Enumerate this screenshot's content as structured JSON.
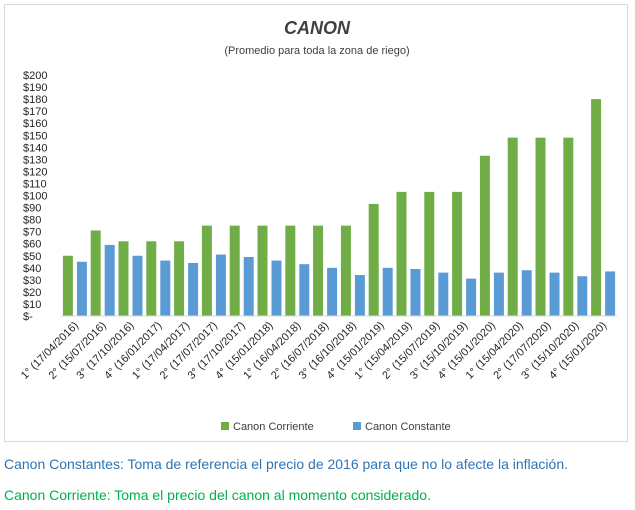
{
  "chart_data": {
    "type": "bar",
    "title": "CANON",
    "subtitle": "(Promedio para toda la zona de riego)",
    "categories": [
      "1° (17/04/2016)",
      "2° (15/07/2016)",
      "3° (17/10/2016)",
      "4° (16/01/2017)",
      "1° (17/04/2017)",
      "2° (17/07/2017)",
      "3° (17/10/2017)",
      "4° (15/01/2018)",
      "1° (16/04/2018)",
      "2° (16/07/2018)",
      "3° (16/10/2018)",
      "4° (15/01/2019)",
      "1° (15/04/2019)",
      "2° (15/07/2019)",
      "3° (15/10/2019)",
      "4° (15/01/2020)",
      "1° (15/04/2020)",
      "2° (17/07/2020)",
      "3° (15/10/2020)",
      "4°  (15/01/2020)"
    ],
    "series": [
      {
        "name": "Canon Corriente",
        "color": "#70ad47",
        "values": [
          50,
          71,
          62,
          62,
          62,
          75,
          75,
          75,
          75,
          75,
          75,
          93,
          103,
          103,
          103,
          133,
          148,
          148,
          148,
          180
        ]
      },
      {
        "name": "Canon Constante",
        "color": "#5b9bd5",
        "values": [
          45,
          59,
          50,
          46,
          44,
          51,
          49,
          46,
          43,
          40,
          34,
          40,
          39,
          36,
          31,
          36,
          38,
          36,
          33,
          37
        ]
      }
    ],
    "ylim": [
      0,
      200
    ],
    "ytick_labels": [
      "$-",
      "$10",
      "$20",
      "$30",
      "$40",
      "$50",
      "$60",
      "$70",
      "$80",
      "$90",
      "$100",
      "$110",
      "$120",
      "$130",
      "$140",
      "$150",
      "$160",
      "$170",
      "$180",
      "$190",
      "$200"
    ],
    "grid": false,
    "legend_position": "bottom"
  },
  "notes": {
    "constante": "Canon Constantes: Toma de referencia el precio de 2016 para que no lo afecte la inflación.",
    "corriente": "Canon Corriente: Toma el precio del canon al momento considerado."
  }
}
